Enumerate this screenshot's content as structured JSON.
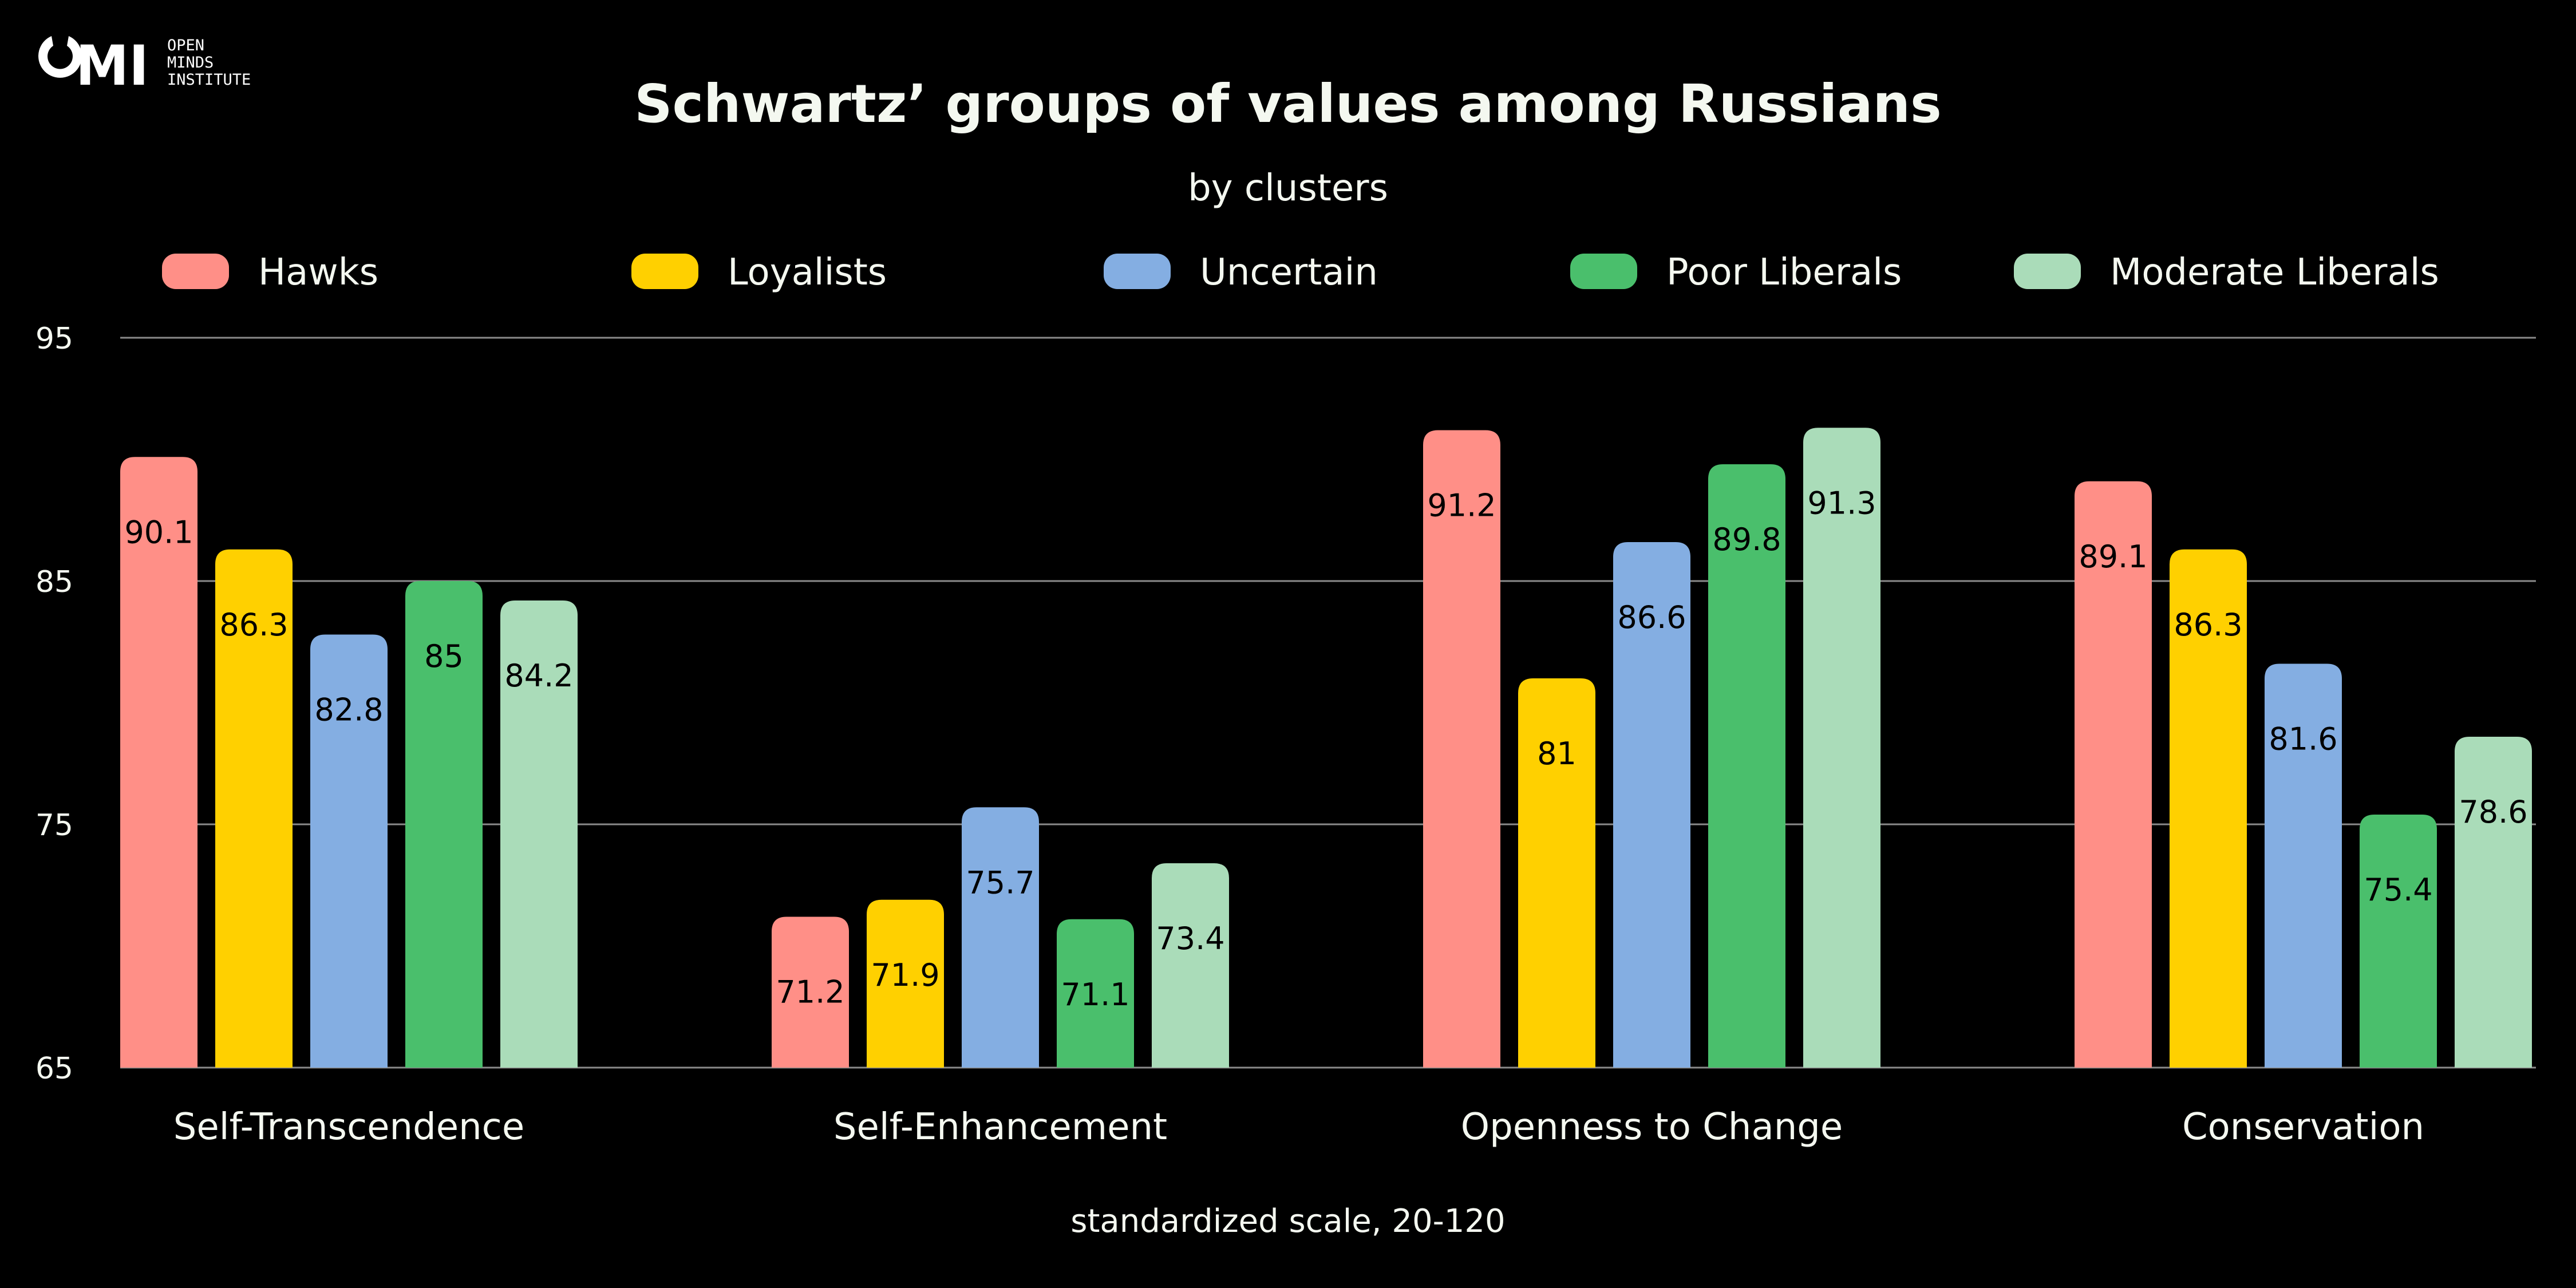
{
  "logo": {
    "mark": "OMI",
    "lines": [
      "OPEN",
      "MINDS",
      "INSTITUTE"
    ]
  },
  "chart_data": {
    "type": "bar",
    "title": "Schwartz’ groups of values among Russians",
    "subtitle": "by clusters",
    "xlabel": "standardized scale, 20-120",
    "ylabel": "",
    "ylim": [
      65,
      95
    ],
    "yticks": [
      95,
      85,
      75,
      65
    ],
    "grid": true,
    "legend_position": "top",
    "categories": [
      "Self-Transcendence",
      "Self-Enhancement",
      "Openness to Change",
      "Conservation"
    ],
    "series": [
      {
        "name": "Hawks",
        "color": "#ff8f87",
        "values": [
          90.1,
          71.2,
          91.2,
          89.1
        ]
      },
      {
        "name": "Loyalists",
        "color": "#ffd000",
        "values": [
          86.3,
          71.9,
          81,
          86.3
        ]
      },
      {
        "name": "Uncertain",
        "color": "#84aee2",
        "values": [
          82.8,
          75.7,
          86.6,
          81.6
        ]
      },
      {
        "name": "Poor Liberals",
        "color": "#4abf6c",
        "values": [
          85,
          71.1,
          89.8,
          75.4
        ]
      },
      {
        "name": "Moderate Liberals",
        "color": "#aadcb9",
        "values": [
          84.2,
          73.4,
          91.3,
          78.6
        ]
      }
    ]
  }
}
